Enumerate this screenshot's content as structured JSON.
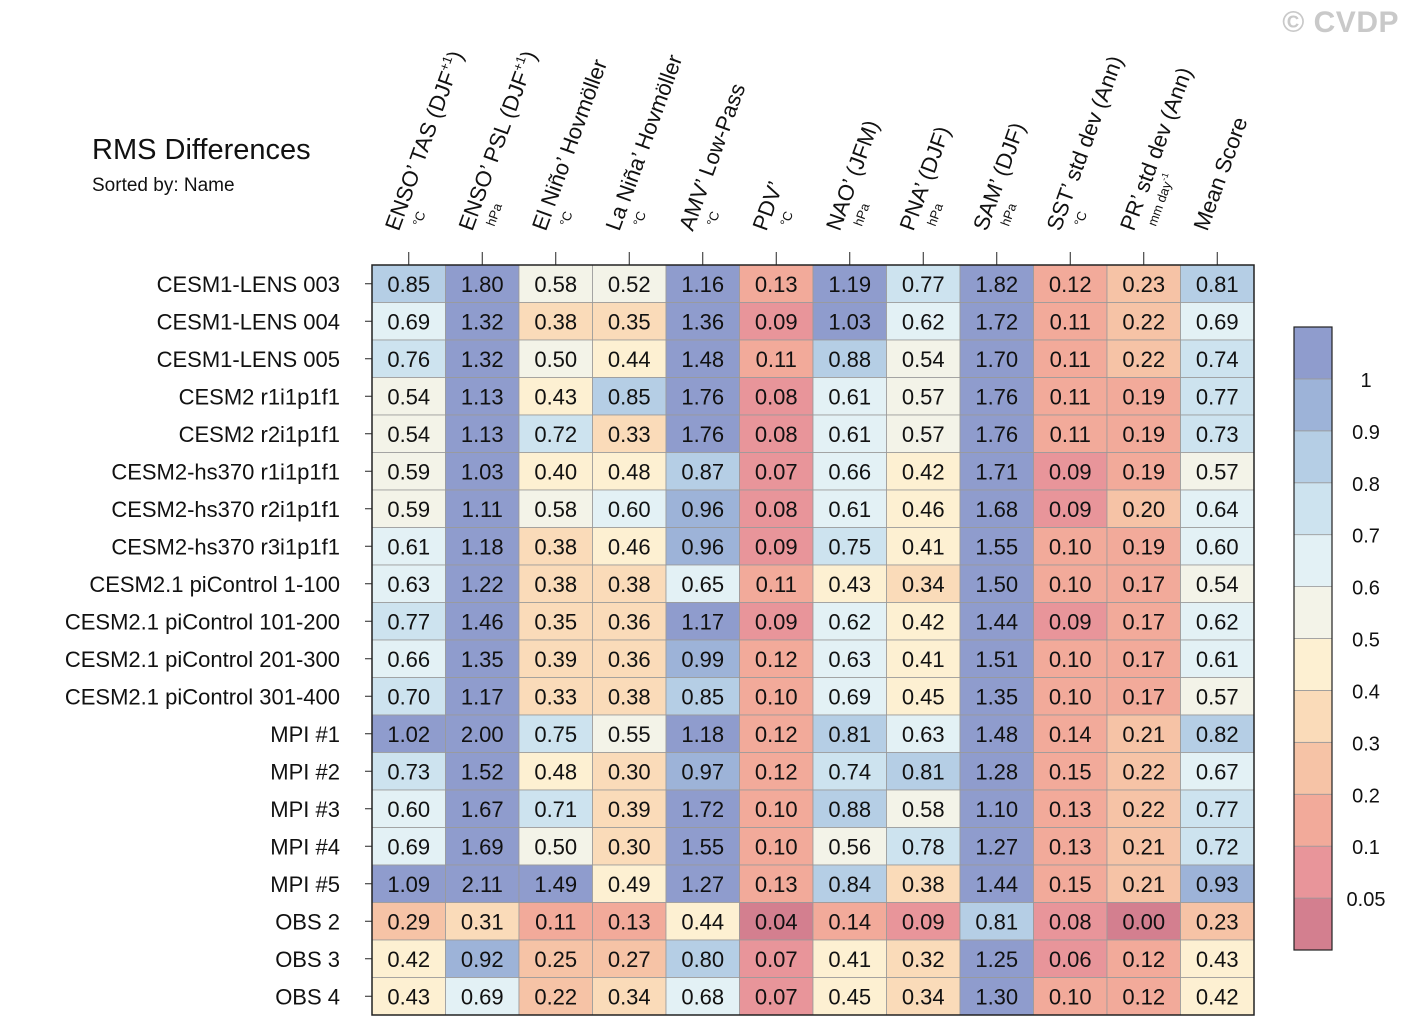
{
  "watermark": "© CVDP",
  "chart_data": {
    "type": "heatmap",
    "title": "RMS Differences",
    "subtitle": "Sorted by: Name",
    "columns": [
      {
        "label": "ENSO’ TAS (DJF",
        "sup": "+1",
        "label_end": ")",
        "unit": "°C",
        "unit_sup": ""
      },
      {
        "label": "ENSO’ PSL (DJF",
        "sup": "+1",
        "label_end": ")",
        "unit": "hPa",
        "unit_sup": ""
      },
      {
        "label": "El Niño’ Hovmöller",
        "sup": "",
        "label_end": "",
        "unit": "°C",
        "unit_sup": ""
      },
      {
        "label": "La Niña’ Hovmöller",
        "sup": "",
        "label_end": "",
        "unit": "°C",
        "unit_sup": ""
      },
      {
        "label": "AMV’ Low-Pass",
        "sup": "",
        "label_end": "",
        "unit": "°C",
        "unit_sup": ""
      },
      {
        "label": "PDV’",
        "sup": "",
        "label_end": "",
        "unit": "°C",
        "unit_sup": ""
      },
      {
        "label": "NAO’ (JFM)",
        "sup": "",
        "label_end": "",
        "unit": "hPa",
        "unit_sup": ""
      },
      {
        "label": "PNA’ (DJF)",
        "sup": "",
        "label_end": "",
        "unit": "hPa",
        "unit_sup": ""
      },
      {
        "label": "SAM’ (DJF)",
        "sup": "",
        "label_end": "",
        "unit": "hPa",
        "unit_sup": ""
      },
      {
        "label": "SST’ std dev (Ann)",
        "sup": "",
        "label_end": "",
        "unit": "°C",
        "unit_sup": ""
      },
      {
        "label": "PR’ std dev (Ann)",
        "sup": "",
        "label_end": "",
        "unit": "mm day",
        "unit_sup": "-1"
      },
      {
        "label": "Mean Score",
        "sup": "",
        "label_end": "",
        "unit": "",
        "unit_sup": ""
      }
    ],
    "rows": [
      "CESM1-LENS 003",
      "CESM1-LENS 004",
      "CESM1-LENS 005",
      "CESM2 r1i1p1f1",
      "CESM2 r2i1p1f1",
      "CESM2-hs370 r1i1p1f1",
      "CESM2-hs370 r2i1p1f1",
      "CESM2-hs370 r3i1p1f1",
      "CESM2.1 piControl 1-100",
      "CESM2.1 piControl 101-200",
      "CESM2.1 piControl 201-300",
      "CESM2.1 piControl 301-400",
      "MPI #1",
      "MPI #2",
      "MPI #3",
      "MPI #4",
      "MPI #5",
      "OBS 2",
      "OBS 3",
      "OBS 4"
    ],
    "values": [
      [
        0.85,
        1.8,
        0.58,
        0.52,
        1.16,
        0.13,
        1.19,
        0.77,
        1.82,
        0.12,
        0.23,
        0.81
      ],
      [
        0.69,
        1.32,
        0.38,
        0.35,
        1.36,
        0.09,
        1.03,
        0.62,
        1.72,
        0.11,
        0.22,
        0.69
      ],
      [
        0.76,
        1.32,
        0.5,
        0.44,
        1.48,
        0.11,
        0.88,
        0.54,
        1.7,
        0.11,
        0.22,
        0.74
      ],
      [
        0.54,
        1.13,
        0.43,
        0.85,
        1.76,
        0.08,
        0.61,
        0.57,
        1.76,
        0.11,
        0.19,
        0.77
      ],
      [
        0.54,
        1.13,
        0.72,
        0.33,
        1.76,
        0.08,
        0.61,
        0.57,
        1.76,
        0.11,
        0.19,
        0.73
      ],
      [
        0.59,
        1.03,
        0.4,
        0.48,
        0.87,
        0.07,
        0.66,
        0.42,
        1.71,
        0.09,
        0.19,
        0.57
      ],
      [
        0.59,
        1.11,
        0.58,
        0.6,
        0.96,
        0.08,
        0.61,
        0.46,
        1.68,
        0.09,
        0.2,
        0.64
      ],
      [
        0.61,
        1.18,
        0.38,
        0.46,
        0.96,
        0.09,
        0.75,
        0.41,
        1.55,
        0.1,
        0.19,
        0.6
      ],
      [
        0.63,
        1.22,
        0.38,
        0.38,
        0.65,
        0.11,
        0.43,
        0.34,
        1.5,
        0.1,
        0.17,
        0.54
      ],
      [
        0.77,
        1.46,
        0.35,
        0.36,
        1.17,
        0.09,
        0.62,
        0.42,
        1.44,
        0.09,
        0.17,
        0.62
      ],
      [
        0.66,
        1.35,
        0.39,
        0.36,
        0.99,
        0.12,
        0.63,
        0.41,
        1.51,
        0.1,
        0.17,
        0.61
      ],
      [
        0.7,
        1.17,
        0.33,
        0.38,
        0.85,
        0.1,
        0.69,
        0.45,
        1.35,
        0.1,
        0.17,
        0.57
      ],
      [
        1.02,
        2.0,
        0.75,
        0.55,
        1.18,
        0.12,
        0.81,
        0.63,
        1.48,
        0.14,
        0.21,
        0.82
      ],
      [
        0.73,
        1.52,
        0.48,
        0.3,
        0.97,
        0.12,
        0.74,
        0.81,
        1.28,
        0.15,
        0.22,
        0.67
      ],
      [
        0.6,
        1.67,
        0.71,
        0.39,
        1.72,
        0.1,
        0.88,
        0.58,
        1.1,
        0.13,
        0.22,
        0.77
      ],
      [
        0.69,
        1.69,
        0.5,
        0.3,
        1.55,
        0.1,
        0.56,
        0.78,
        1.27,
        0.13,
        0.21,
        0.72
      ],
      [
        1.09,
        2.11,
        1.49,
        0.49,
        1.27,
        0.13,
        0.84,
        0.38,
        1.44,
        0.15,
        0.21,
        0.93
      ],
      [
        0.29,
        0.31,
        0.11,
        0.13,
        0.44,
        0.04,
        0.14,
        0.09,
        0.81,
        0.08,
        0.0,
        0.23
      ],
      [
        0.42,
        0.92,
        0.25,
        0.27,
        0.8,
        0.07,
        0.41,
        0.32,
        1.25,
        0.06,
        0.12,
        0.43
      ],
      [
        0.43,
        0.69,
        0.22,
        0.34,
        0.68,
        0.07,
        0.45,
        0.34,
        1.3,
        0.1,
        0.12,
        0.42
      ]
    ],
    "colorbar": {
      "levels": [
        0.05,
        0.1,
        0.2,
        0.3,
        0.4,
        0.5,
        0.6,
        0.7,
        0.8,
        0.9,
        1
      ],
      "tick_labels": [
        "0.05",
        "0.1",
        "0.2",
        "0.3",
        "0.4",
        "0.5",
        "0.6",
        "0.7",
        "0.8",
        "0.9",
        "1"
      ],
      "colors": [
        "#d37f8f",
        "#e8959a",
        "#f2aa9a",
        "#f6c3a6",
        "#fadbb9",
        "#fdf0d2",
        "#f3f3e8",
        "#e3f1f5",
        "#cde3ef",
        "#b5cee5",
        "#9db3d8",
        "#8f9ccd"
      ]
    }
  }
}
